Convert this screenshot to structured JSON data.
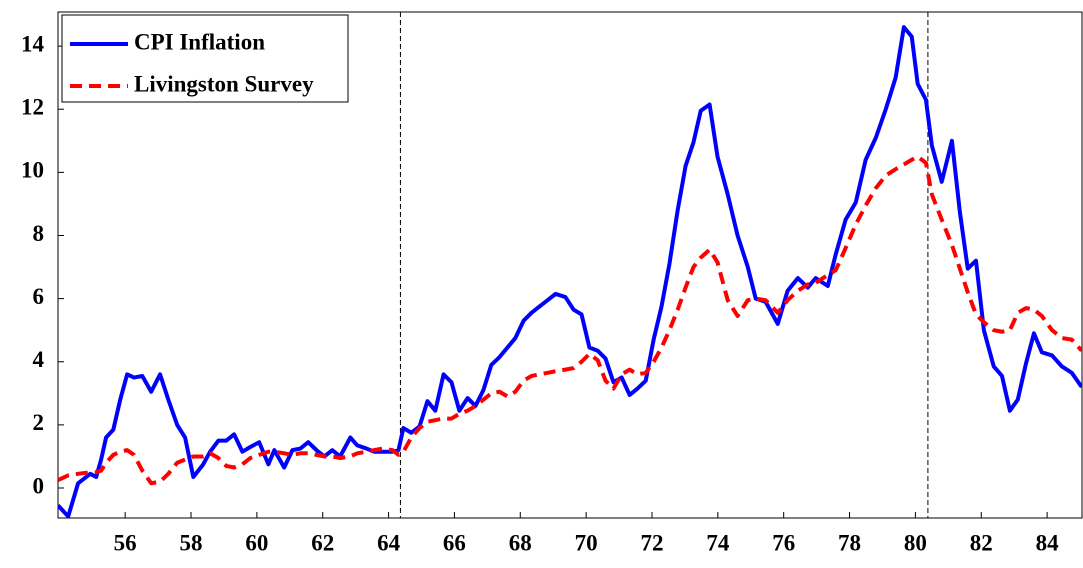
{
  "chart_data": {
    "type": "line",
    "x": [
      53.96,
      54.27,
      54.57,
      54.94,
      55.12,
      55.27,
      55.42,
      55.64,
      55.85,
      56.06,
      56.27,
      56.52,
      56.79,
      57.06,
      57.31,
      57.58,
      57.82,
      58.07,
      58.37,
      58.58,
      58.83,
      59.07,
      59.31,
      59.56,
      59.8,
      60.07,
      60.35,
      60.53,
      60.83,
      61.08,
      61.32,
      61.56,
      61.81,
      62.05,
      62.29,
      62.53,
      62.84,
      63.05,
      63.33,
      63.57,
      63.81,
      64.12,
      64.3,
      64.45,
      64.69,
      64.94,
      65.18,
      65.42,
      65.67,
      65.91,
      66.15,
      66.4,
      66.64,
      66.88,
      67.12,
      67.37,
      67.61,
      67.85,
      68.1,
      68.34,
      68.58,
      68.83,
      69.07,
      69.37,
      69.62,
      69.86,
      70.1,
      70.35,
      70.59,
      70.83,
      71.08,
      71.32,
      71.56,
      71.81,
      72.05,
      72.29,
      72.53,
      72.78,
      73.02,
      73.26,
      73.48,
      73.75,
      73.99,
      74.3,
      74.6,
      74.91,
      75.15,
      75.45,
      75.82,
      76.12,
      76.43,
      76.73,
      76.97,
      77.34,
      77.58,
      77.88,
      78.19,
      78.49,
      78.8,
      79.1,
      79.4,
      79.65,
      79.89,
      80.07,
      80.32,
      80.5,
      80.8,
      81.11,
      81.35,
      81.59,
      81.84,
      82.08,
      82.38,
      82.63,
      82.87,
      83.11,
      83.36,
      83.6,
      83.84,
      84.15,
      84.45,
      84.75,
      85.05
    ],
    "series": [
      {
        "name": "CPI Inflation",
        "color": "#0000ff",
        "dash": false,
        "values": [
          -0.55,
          -0.9,
          0.15,
          0.45,
          0.35,
          0.9,
          1.6,
          1.85,
          2.8,
          3.6,
          3.5,
          3.55,
          3.05,
          3.6,
          2.8,
          2.0,
          1.6,
          0.35,
          0.75,
          1.15,
          1.5,
          1.5,
          1.7,
          1.15,
          1.3,
          1.45,
          0.75,
          1.2,
          0.65,
          1.2,
          1.25,
          1.45,
          1.2,
          1.0,
          1.2,
          1.0,
          1.6,
          1.35,
          1.25,
          1.15,
          1.15,
          1.15,
          1.2,
          1.9,
          1.75,
          1.95,
          2.75,
          2.45,
          3.6,
          3.35,
          2.45,
          2.85,
          2.6,
          3.1,
          3.9,
          4.15,
          4.45,
          4.75,
          5.3,
          5.55,
          5.75,
          5.95,
          6.15,
          6.05,
          5.65,
          5.5,
          4.45,
          4.35,
          4.1,
          3.35,
          3.5,
          2.95,
          3.15,
          3.4,
          4.7,
          5.75,
          7.1,
          8.8,
          10.2,
          10.95,
          11.95,
          12.15,
          10.5,
          9.3,
          8.0,
          7.0,
          6.0,
          5.9,
          5.2,
          6.25,
          6.65,
          6.35,
          6.65,
          6.4,
          7.4,
          8.5,
          9.05,
          10.4,
          11.1,
          12.0,
          13.0,
          14.6,
          14.3,
          12.8,
          12.3,
          10.85,
          9.7,
          11.0,
          8.75,
          6.95,
          7.2,
          5.0,
          3.85,
          3.55,
          2.45,
          2.8,
          3.95,
          4.9,
          4.3,
          4.2,
          3.85,
          3.65,
          3.2
        ]
      },
      {
        "name": "Livingston Survey",
        "color": "#ff0000",
        "dash": true,
        "values": [
          0.25,
          0.4,
          0.45,
          0.5,
          0.5,
          0.55,
          0.8,
          1.05,
          1.15,
          1.2,
          1.05,
          0.55,
          0.15,
          0.2,
          0.45,
          0.8,
          0.9,
          1.0,
          1.0,
          1.1,
          0.95,
          0.7,
          0.65,
          0.75,
          0.95,
          1.05,
          1.15,
          1.15,
          1.1,
          1.05,
          1.1,
          1.1,
          1.05,
          1.0,
          1.0,
          0.95,
          1.0,
          1.1,
          1.15,
          1.2,
          1.25,
          1.2,
          1.05,
          1.15,
          1.6,
          1.9,
          2.1,
          2.15,
          2.2,
          2.2,
          2.35,
          2.45,
          2.6,
          2.8,
          3.0,
          3.05,
          2.9,
          3.05,
          3.4,
          3.55,
          3.6,
          3.65,
          3.7,
          3.75,
          3.8,
          4.0,
          4.25,
          4.05,
          3.4,
          3.15,
          3.6,
          3.75,
          3.6,
          3.65,
          4.0,
          4.45,
          5.0,
          5.65,
          6.35,
          7.0,
          7.3,
          7.55,
          7.15,
          5.95,
          5.45,
          5.95,
          6.0,
          5.95,
          5.55,
          5.95,
          6.25,
          6.45,
          6.5,
          6.75,
          6.9,
          7.6,
          8.35,
          8.95,
          9.5,
          9.9,
          10.1,
          10.25,
          10.4,
          10.5,
          10.3,
          9.3,
          8.5,
          7.7,
          6.95,
          6.2,
          5.5,
          5.25,
          5.0,
          4.95,
          5.0,
          5.55,
          5.7,
          5.65,
          5.45,
          5.0,
          4.75,
          4.7,
          4.35
        ]
      }
    ],
    "xlim": [
      53.96,
      85.06
    ],
    "ylim": [
      -0.95,
      15.08
    ],
    "xticks": [
      {
        "value": 56,
        "label": "56"
      },
      {
        "value": 58,
        "label": "58"
      },
      {
        "value": 60,
        "label": "60"
      },
      {
        "value": 62,
        "label": "62"
      },
      {
        "value": 64,
        "label": "64"
      },
      {
        "value": 66,
        "label": "66"
      },
      {
        "value": 68,
        "label": "68"
      },
      {
        "value": 70,
        "label": "70"
      },
      {
        "value": 72,
        "label": "72"
      },
      {
        "value": 74,
        "label": "74"
      },
      {
        "value": 76,
        "label": "76"
      },
      {
        "value": 78,
        "label": "78"
      },
      {
        "value": 80,
        "label": "80"
      },
      {
        "value": 82,
        "label": "82"
      },
      {
        "value": 84,
        "label": "84"
      }
    ],
    "yticks": [
      0,
      2,
      4,
      6,
      8,
      10,
      12,
      14
    ],
    "vlines": [
      64.36,
      80.38
    ],
    "grid": false,
    "legend": "upper-left"
  }
}
